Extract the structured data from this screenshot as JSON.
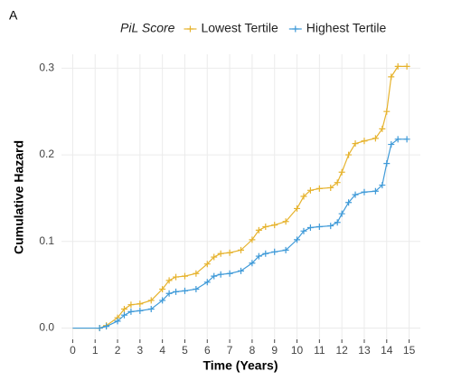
{
  "panel_label": "A",
  "chart_data": {
    "type": "line",
    "legend_title": "PiL Score",
    "x_label": "Time (Years)",
    "y_label": "Cumulative Hazard",
    "x": [
      0,
      1.2,
      1.5,
      2.0,
      2.3,
      2.6,
      3.0,
      3.5,
      4.0,
      4.3,
      4.6,
      5.0,
      5.5,
      6.0,
      6.3,
      6.6,
      7.0,
      7.5,
      8.0,
      8.3,
      8.6,
      9.0,
      9.5,
      10.0,
      10.3,
      10.6,
      11.0,
      11.5,
      11.8,
      12.0,
      12.3,
      12.6,
      13.0,
      13.5,
      13.8,
      14.0,
      14.2,
      14.5,
      14.9
    ],
    "series": [
      {
        "name": "Lowest Tertile",
        "color": "#e6b32e",
        "values": [
          0,
          0,
          0.003,
          0.012,
          0.022,
          0.027,
          0.028,
          0.032,
          0.045,
          0.055,
          0.059,
          0.06,
          0.063,
          0.074,
          0.082,
          0.086,
          0.087,
          0.09,
          0.102,
          0.113,
          0.117,
          0.119,
          0.123,
          0.138,
          0.152,
          0.159,
          0.161,
          0.162,
          0.168,
          0.18,
          0.2,
          0.213,
          0.216,
          0.219,
          0.23,
          0.25,
          0.29,
          0.302,
          0.302
        ]
      },
      {
        "name": "Highest Tertile",
        "color": "#3f9ad8",
        "values": [
          0,
          0,
          0.002,
          0.008,
          0.015,
          0.019,
          0.02,
          0.022,
          0.032,
          0.04,
          0.042,
          0.043,
          0.045,
          0.053,
          0.06,
          0.062,
          0.063,
          0.066,
          0.075,
          0.083,
          0.086,
          0.088,
          0.09,
          0.102,
          0.112,
          0.116,
          0.117,
          0.118,
          0.122,
          0.132,
          0.145,
          0.154,
          0.157,
          0.158,
          0.165,
          0.19,
          0.212,
          0.218,
          0.218
        ]
      }
    ],
    "xlim": [
      -0.5,
      15.5
    ],
    "xticks": [
      0,
      1,
      2,
      3,
      4,
      5,
      6,
      7,
      8,
      9,
      10,
      11,
      12,
      13,
      14,
      15
    ],
    "ylim": [
      -0.013,
      0.316
    ],
    "yticks": [
      {
        "value": 0,
        "label": "0.0"
      },
      0.1,
      0.2,
      0.3
    ],
    "grid": true
  }
}
